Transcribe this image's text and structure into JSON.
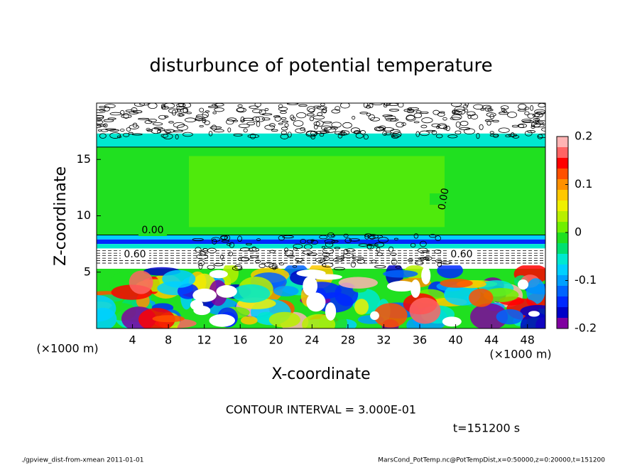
{
  "chart_data": {
    "type": "contour",
    "title": "disturbunce of potential temperature",
    "x_label": "X-coordinate",
    "y_label": "Z-coordinate",
    "x_unit": "(×1000 m)",
    "y_unit": "(×1000 m)",
    "xlim": [
      0,
      50
    ],
    "ylim": [
      0,
      20
    ],
    "xticks": [
      4,
      8,
      12,
      16,
      20,
      24,
      28,
      32,
      36,
      40,
      44,
      48
    ],
    "yticks": [
      5,
      10,
      15
    ],
    "clim": [
      -0.2,
      0.2
    ],
    "cticks": [
      -0.2,
      -0.1,
      0,
      0.1,
      0.2
    ],
    "colors": [
      "#8000a0",
      "#0000c8",
      "#0028ff",
      "#0064ff",
      "#00a0ff",
      "#00d0ff",
      "#00e8d0",
      "#00e070",
      "#20e020",
      "#70f000",
      "#b8f000",
      "#f0f000",
      "#ffc800",
      "#ff9000",
      "#ff5000",
      "#ff0000",
      "#ff6464",
      "#ffb4b4"
    ],
    "contour_labels": [
      "0.00",
      "0.00",
      "0.60",
      "0.60"
    ],
    "contour_interval": "CONTOUR INTERVAL = 3.000E-01",
    "time": "t=151200 s",
    "footer_left": "./gpview_dist-from-xmean  2011-01-01",
    "footer_right": "MarsCond_PotTemp.nc@PotTempDist,x=0:50000,z=0:20000,t=151200"
  }
}
